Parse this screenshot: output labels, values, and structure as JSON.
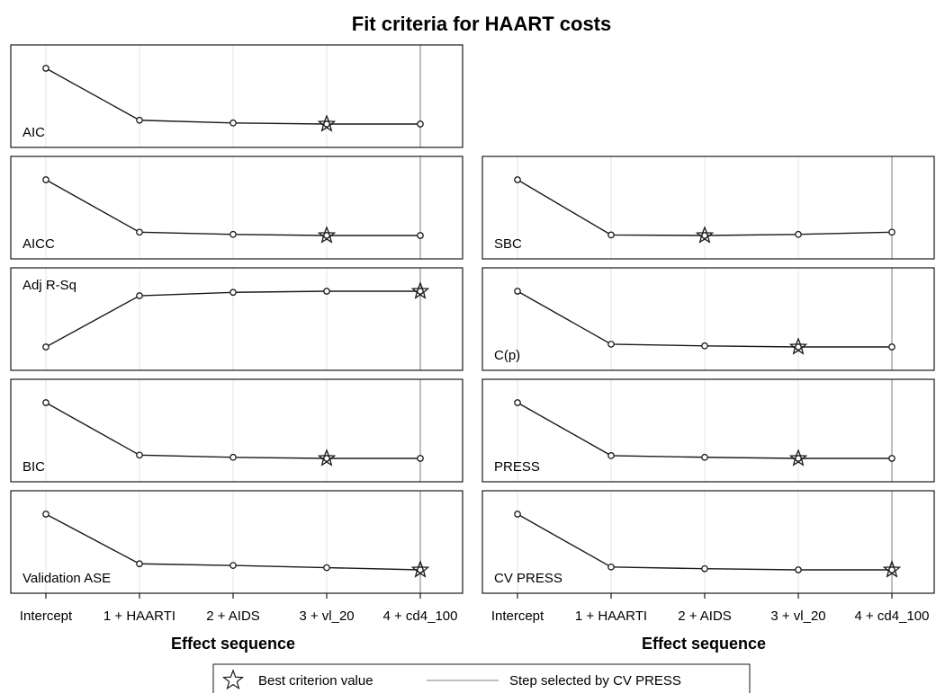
{
  "chart_data": {
    "type": "line",
    "title": "Fit criteria for HAART costs",
    "xlabel": "Effect sequence",
    "categories": [
      "Intercept",
      "1 + HAARTI",
      "2 + AIDS",
      "3 + vl_20",
      "4 + cd4_100"
    ],
    "selected_step": "4 + cd4_100",
    "grid": "vertical",
    "panels": [
      {
        "label": "AIC",
        "column": "left",
        "values": [
          1.0,
          0.05,
          0.0,
          -0.02,
          -0.02
        ],
        "best": "3 + vl_20",
        "label_position": "bottom-left"
      },
      {
        "label": "AICC",
        "column": "left",
        "values": [
          1.0,
          0.05,
          0.01,
          -0.01,
          -0.01
        ],
        "best": "3 + vl_20",
        "label_position": "bottom-left"
      },
      {
        "label": "SBC",
        "column": "right",
        "values": [
          1.0,
          0.0,
          -0.01,
          0.01,
          0.05
        ],
        "best": "2 + AIDS",
        "label_position": "bottom-left"
      },
      {
        "label": "Adj R-Sq",
        "column": "left",
        "values": [
          0.0,
          0.91,
          0.97,
          0.99,
          0.99
        ],
        "best": "4 + cd4_100",
        "label_position": "top-left"
      },
      {
        "label": "C(p)",
        "column": "right",
        "values": [
          1.0,
          0.04,
          0.01,
          -0.01,
          -0.01
        ],
        "best": "3 + vl_20",
        "label_position": "bottom-left"
      },
      {
        "label": "BIC",
        "column": "left",
        "values": [
          1.0,
          0.05,
          0.01,
          -0.01,
          -0.01
        ],
        "best": "3 + vl_20",
        "label_position": "bottom-left"
      },
      {
        "label": "PRESS",
        "column": "right",
        "values": [
          1.0,
          0.05,
          0.02,
          0.0,
          0.0
        ],
        "best": "3 + vl_20",
        "label_position": "bottom-left"
      },
      {
        "label": "Validation ASE",
        "column": "left",
        "values": [
          1.0,
          0.1,
          0.07,
          0.03,
          -0.01
        ],
        "best": "4 + cd4_100",
        "label_position": "bottom-left"
      },
      {
        "label": "CV PRESS",
        "column": "right",
        "values": [
          1.0,
          0.07,
          0.04,
          0.02,
          0.02
        ],
        "best": "4 + cd4_100",
        "label_position": "bottom-left"
      }
    ],
    "legend": {
      "position": "bottom-center",
      "items": [
        {
          "symbol": "star",
          "label": "Best criterion value"
        },
        {
          "symbol": "line",
          "label": "Step selected by CV PRESS"
        }
      ]
    }
  },
  "colors": {
    "line": "#1a1a1a",
    "marker": "#1a1a1a",
    "frame": "#1a1a1a",
    "grid": "#e6e6e6",
    "selected": "#a8a8a8",
    "background": "#ffffff"
  }
}
